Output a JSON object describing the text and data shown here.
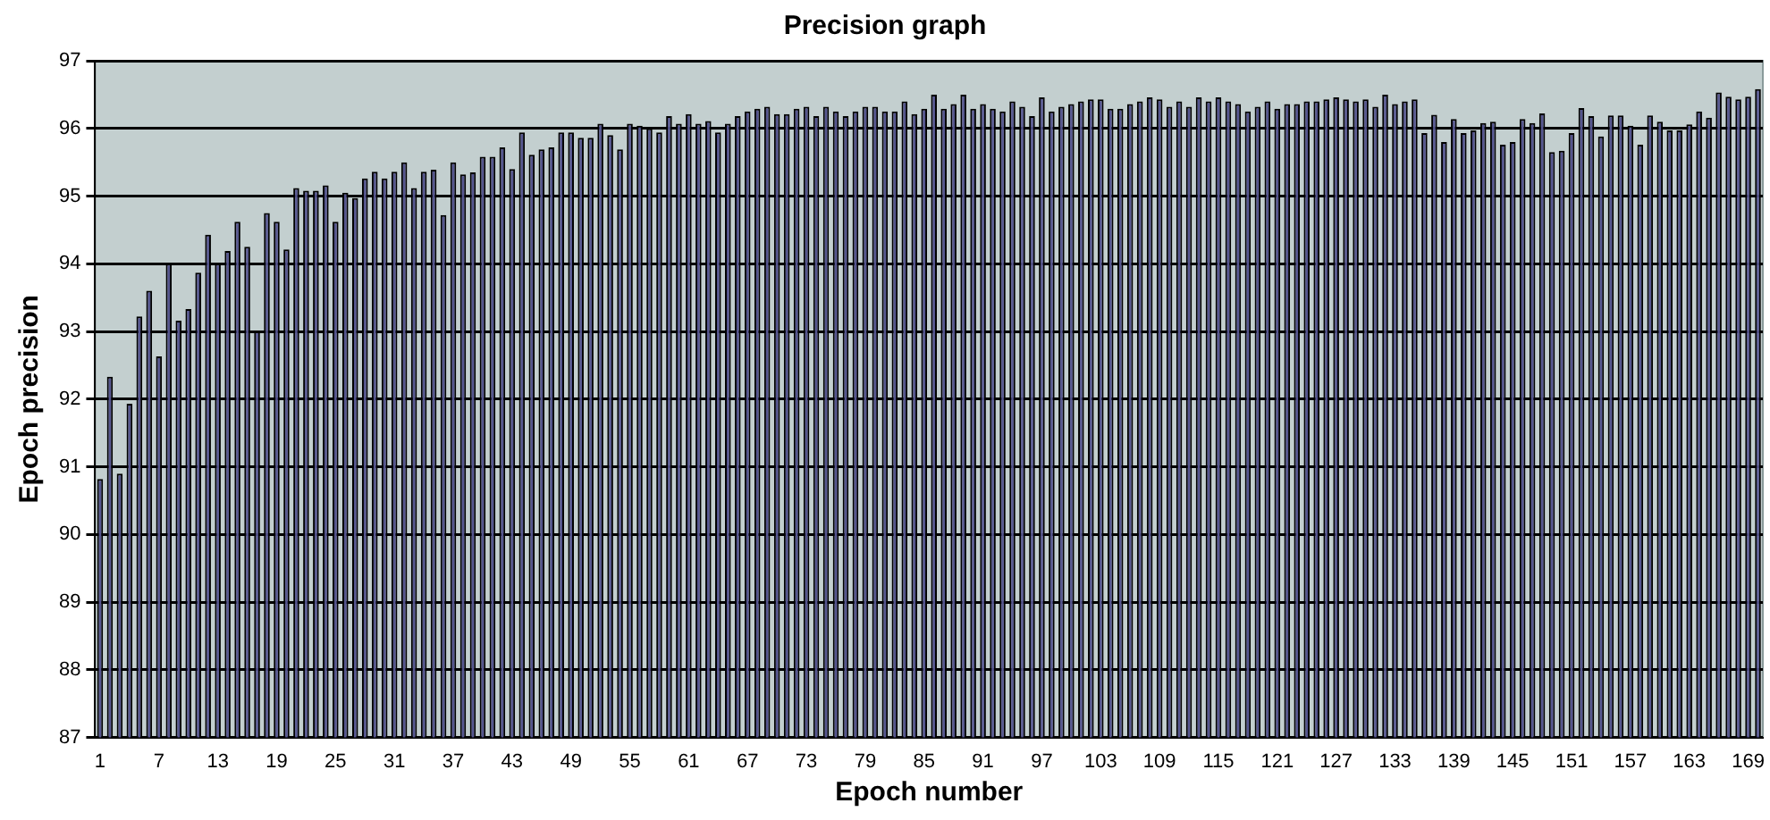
{
  "chart_data": {
    "type": "bar",
    "title": "Precision graph",
    "xlabel": "Epoch number",
    "ylabel": "Epoch precision",
    "categories": [
      "1",
      null,
      null,
      null,
      null,
      null,
      "7",
      null,
      null,
      null,
      null,
      null,
      "13",
      null,
      null,
      null,
      null,
      null,
      "19",
      null,
      null,
      null,
      null,
      null,
      "25",
      null,
      null,
      null,
      null,
      null,
      "31",
      null,
      null,
      null,
      null,
      null,
      "37",
      null,
      null,
      null,
      null,
      null,
      "43",
      null,
      null,
      null,
      null,
      null,
      "49",
      null,
      null,
      null,
      null,
      null,
      "55",
      null,
      null,
      null,
      null,
      null,
      "61",
      null,
      null,
      null,
      null,
      null,
      "67",
      null,
      null,
      null,
      null,
      null,
      "73",
      null,
      null,
      null,
      null,
      null,
      "79",
      null,
      null,
      null,
      null,
      null,
      "85",
      null,
      null,
      null,
      null,
      null,
      "91",
      null,
      null,
      null,
      null,
      null,
      "97",
      null,
      null,
      null,
      null,
      null,
      "103",
      null,
      null,
      null,
      null,
      null,
      "109",
      null,
      null,
      null,
      null,
      null,
      "115",
      null,
      null,
      null,
      null,
      null,
      "121",
      null,
      null,
      null,
      null,
      null,
      "127",
      null,
      null,
      null,
      null,
      null,
      "133",
      null,
      null,
      null,
      null,
      null,
      "139",
      null,
      null,
      null,
      null,
      null,
      "145",
      null,
      null,
      null,
      null,
      null,
      "151",
      null,
      null,
      null,
      null,
      null,
      "157",
      null,
      null,
      null,
      null,
      null,
      "163",
      null,
      null,
      null,
      null,
      null,
      "169",
      null
    ],
    "values": [
      90.82,
      92.33,
      90.9,
      91.93,
      93.22,
      93.6,
      92.63,
      94.0,
      93.16,
      93.33,
      93.87,
      94.43,
      94.0,
      94.19,
      94.62,
      94.25,
      93.0,
      94.75,
      94.62,
      94.21,
      95.12,
      95.08,
      95.08,
      95.16,
      94.62,
      95.05,
      94.97,
      95.26,
      95.36,
      95.26,
      95.36,
      95.5,
      95.12,
      95.36,
      95.39,
      94.72,
      95.5,
      95.32,
      95.35,
      95.58,
      95.58,
      95.72,
      95.4,
      95.94,
      95.61,
      95.69,
      95.72,
      95.94,
      95.94,
      95.86,
      95.86,
      96.07,
      95.9,
      95.69,
      96.07,
      96.04,
      96.0,
      95.94,
      96.18,
      96.07,
      96.21,
      96.07,
      96.11,
      95.94,
      96.07,
      96.18,
      96.25,
      96.29,
      96.32,
      96.21,
      96.21,
      96.29,
      96.32,
      96.18,
      96.32,
      96.25,
      96.18,
      96.25,
      96.32,
      96.32,
      96.25,
      96.25,
      96.4,
      96.21,
      96.29,
      96.5,
      96.29,
      96.36,
      96.5,
      96.29,
      96.36,
      96.29,
      96.25,
      96.4,
      96.32,
      96.18,
      96.46,
      96.25,
      96.32,
      96.36,
      96.4,
      96.43,
      96.43,
      96.29,
      96.29,
      96.36,
      96.4,
      96.46,
      96.43,
      96.32,
      96.4,
      96.32,
      96.46,
      96.4,
      96.46,
      96.4,
      96.36,
      96.25,
      96.32,
      96.4,
      96.29,
      96.36,
      96.36,
      96.4,
      96.4,
      96.43,
      96.46,
      96.43,
      96.4,
      96.43,
      96.32,
      96.5,
      96.36,
      96.4,
      96.43,
      95.93,
      96.2,
      95.8,
      96.14,
      95.93,
      95.97,
      96.08,
      96.1,
      95.76,
      95.8,
      96.14,
      96.08,
      96.22,
      95.65,
      95.67,
      95.93,
      96.3,
      96.18,
      95.88,
      96.19,
      96.19,
      96.04,
      95.76,
      96.19,
      96.1,
      95.97,
      95.97,
      96.06,
      96.25,
      96.16,
      96.53,
      96.47,
      96.43,
      96.47,
      96.58
    ],
    "color": "#55558f",
    "ylim": [
      87,
      97
    ],
    "yticks": [
      87,
      88,
      89,
      90,
      91,
      92,
      93,
      94,
      95,
      96,
      97
    ],
    "grid": "y",
    "legend": false
  }
}
